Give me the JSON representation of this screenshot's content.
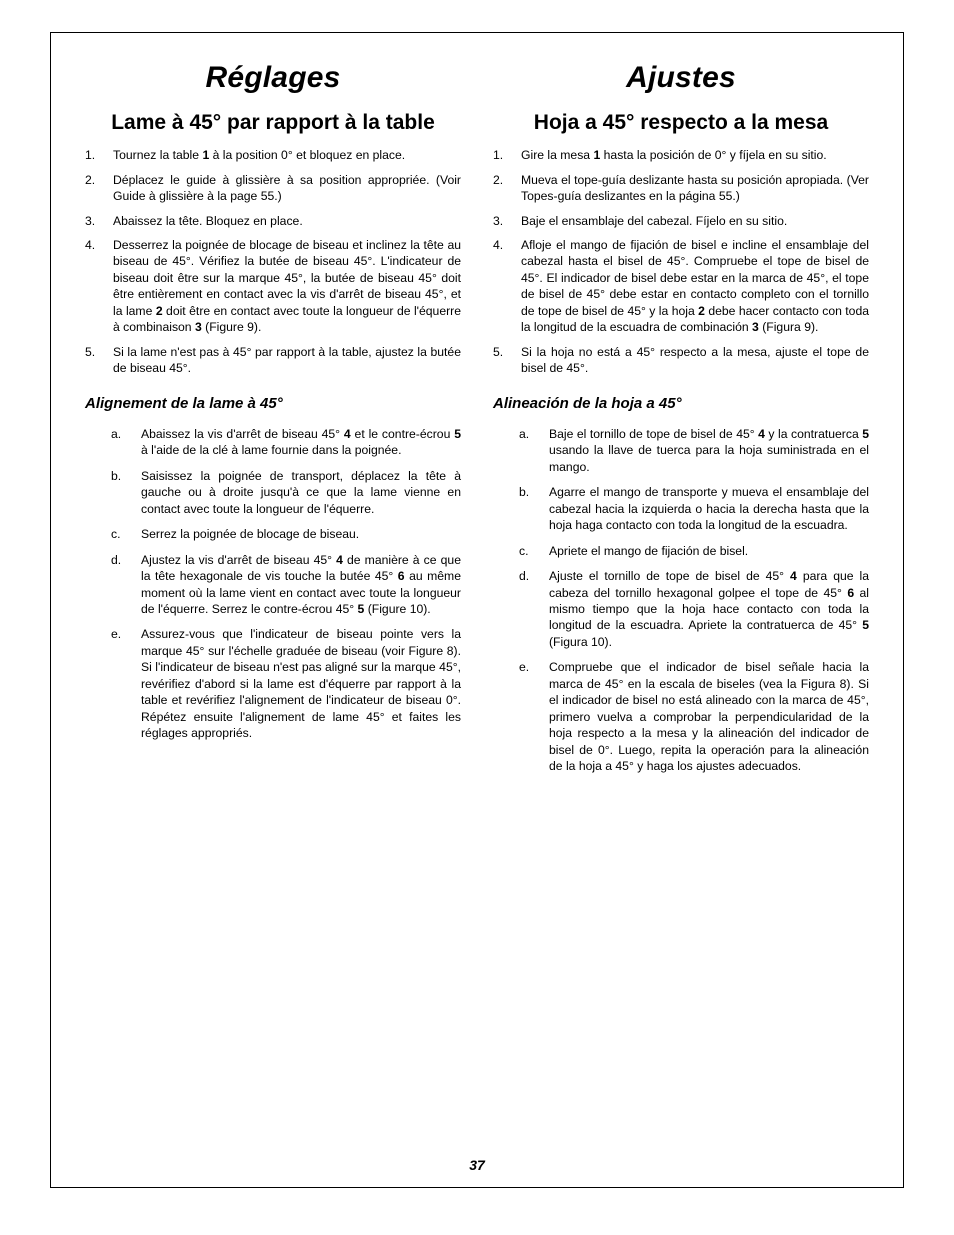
{
  "pageNumber": "37",
  "left": {
    "title": "Réglages",
    "subtitle": "Lame à 45° par rapport à la table",
    "steps": [
      {
        "pre": "Tournez la table ",
        "bold": "1",
        "post": " à la position 0° et bloquez en place."
      },
      {
        "text": "Déplacez le guide à glissière à sa position appropriée. (Voir Guide à glissière à la page 55.)"
      },
      {
        "text": "Abaissez la tête. Bloquez en place."
      },
      {
        "pre": "Desserrez la poignée de blocage de biseau et inclinez la tête au biseau de 45°. Vérifiez la butée de biseau 45°. L'indicateur de biseau doit être sur la marque 45°, la butée de biseau 45° doit être entièrement en contact avec la vis d'arrêt de biseau 45°, et la lame ",
        "bold": "2",
        "post": " doit être en contact avec toute la longueur de l'équerre à combinaison ",
        "bold2": "3",
        "post2": " (Figure 9)."
      },
      {
        "text": "Si la lame n'est pas à 45° par rapport à la table, ajustez la butée de biseau 45°."
      }
    ],
    "subsub": "Alignement de la lame à 45°",
    "letters": [
      {
        "pre": "Abaissez la vis d'arrêt de biseau 45° ",
        "bold": "4",
        "post": " et le contre-écrou ",
        "bold2": "5",
        "post2": " à l'aide de la clé à lame fournie dans la poignée."
      },
      {
        "text": "Saisissez la poignée de transport, déplacez la tête à gauche ou à droite jusqu'à ce que la lame vienne en contact avec toute la longueur de l'équerre."
      },
      {
        "text": "Serrez la poignée de blocage de biseau."
      },
      {
        "pre": "Ajustez la vis d'arrêt de biseau 45° ",
        "bold": "4",
        "post": " de manière à ce que la tête hexagonale de vis touche la butée 45° ",
        "bold2": "6",
        "post2": " au même moment où la lame vient en contact avec toute la longueur de l'équerre. Serrez le contre-écrou 45° ",
        "bold3": "5",
        "post3": " (Figure 10)."
      },
      {
        "text": "Assurez-vous que l'indicateur de biseau pointe vers la marque 45° sur l'échelle graduée de biseau (voir Figure 8). Si l'indicateur de biseau n'est pas aligné sur la marque 45°, revérifiez d'abord si la lame est d'équerre par rapport à la table et revérifiez l'alignement de l'indicateur de biseau 0°. Répétez ensuite l'alignement de lame 45° et faites les réglages appropriés."
      }
    ]
  },
  "right": {
    "title": "Ajustes",
    "subtitle": "Hoja a 45° respecto a la mesa",
    "steps": [
      {
        "pre": "Gire la mesa ",
        "bold": "1",
        "post": " hasta la posición de 0° y fíjela en su sitio."
      },
      {
        "text": "Mueva el tope-guía deslizante hasta su posición apropiada. (Ver Topes-guía deslizantes en la página 55.)"
      },
      {
        "text": "Baje el ensamblaje del cabezal. Fíjelo en su sitio."
      },
      {
        "pre": "Afloje el mango de fijación de bisel e incline el ensamblaje del cabezal hasta el bisel de 45°. Compruebe el tope de bisel de 45°. El indicador de bisel debe estar en la marca de 45°, el tope de bisel de 45° debe estar en contacto completo con el tornillo de tope de bisel de 45° y la hoja ",
        "bold": "2",
        "post": " debe hacer contacto con toda la longitud de la escuadra de combinación ",
        "bold2": "3",
        "post2": " (Figura 9)."
      },
      {
        "text": "Si la hoja no está a 45° respecto a la mesa, ajuste el tope de bisel de 45°."
      }
    ],
    "subsub": "Alineación de la hoja a 45°",
    "letters": [
      {
        "pre": "Baje el tornillo de tope de bisel de 45° ",
        "bold": "4",
        "post": " y la contratuerca ",
        "bold2": "5",
        "post2": " usando la llave de tuerca para la hoja suministrada en el mango."
      },
      {
        "text": "Agarre el mango de transporte y mueva el ensamblaje del cabezal hacia la izquierda o hacia la derecha hasta que la hoja haga contacto con toda la longitud de la escuadra."
      },
      {
        "text": "Apriete el mango de fijación de bisel."
      },
      {
        "pre": "Ajuste el tornillo de tope de bisel de 45° ",
        "bold": "4",
        "post": " para que la cabeza del tornillo hexagonal golpee el tope de 45° ",
        "bold2": "6",
        "post2": " al mismo tiempo que la hoja hace contacto con toda la longitud de la escuadra. Apriete la contratuerca de 45° ",
        "bold3": "5",
        "post3": " (Figura 10)."
      },
      {
        "text": "Compruebe que el indicador de bisel señale hacia la marca de 45° en la escala de biseles (vea la Figura 8). Si el indicador de bisel no está alineado con la marca de 45°, primero vuelva a comprobar la perpendicularidad de la hoja respecto a la mesa y la alineación del indicador de bisel de 0°. Luego, repita la operación para la alineación de la hoja a 45° y haga los ajustes adecuados."
      }
    ]
  }
}
